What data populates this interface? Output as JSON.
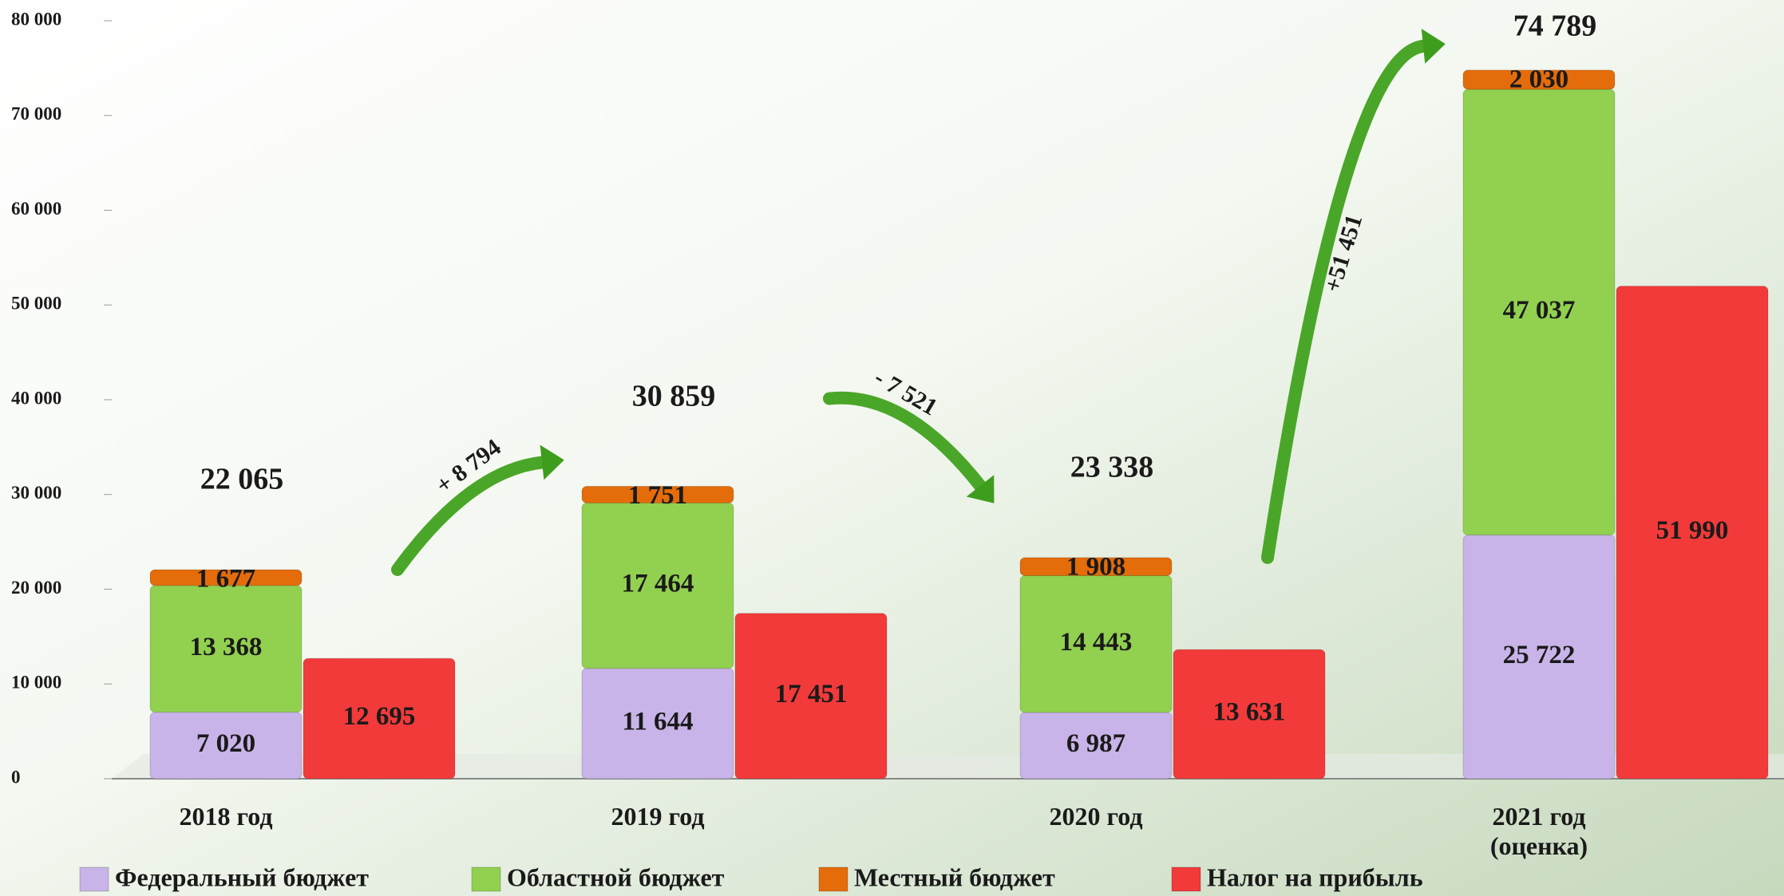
{
  "chart_data": {
    "type": "bar",
    "categories": [
      "2018 год",
      "2019 год",
      "2020 год",
      "2021 год (оценка)"
    ],
    "series": [
      {
        "name": "Федеральный бюджет",
        "color": "#c8b4e8",
        "stacked": true,
        "values": [
          7020,
          11644,
          6987,
          25722
        ],
        "value_labels": [
          "7 020",
          "11 644",
          "6 987",
          "25 722"
        ]
      },
      {
        "name": "Областной бюджет",
        "color": "#92d050",
        "stacked": true,
        "values": [
          13368,
          17464,
          14443,
          47037
        ],
        "value_labels": [
          "13 368",
          "17 464",
          "14 443",
          "47 037"
        ]
      },
      {
        "name": "Местный бюджет",
        "color": "#e46c0a",
        "stacked": true,
        "values": [
          1677,
          1751,
          1908,
          2030
        ],
        "value_labels": [
          "1 677",
          "1 751",
          "1 908",
          "2 030"
        ]
      },
      {
        "name": "Налог на прибыль",
        "color": "#f23a3a",
        "stacked": false,
        "values": [
          12695,
          17451,
          13631,
          51990
        ],
        "value_labels": [
          "12 695",
          "17 451",
          "13 631",
          "51 990"
        ]
      }
    ],
    "totals": [
      22065,
      30859,
      23338,
      74789
    ],
    "total_labels": [
      "22 065",
      "30 859",
      "23 338",
      "74 789"
    ],
    "changes": [
      8794,
      -7521,
      51451
    ],
    "change_labels": [
      "+ 8 794",
      "- 7 521",
      "+51 451"
    ],
    "ylim": [
      0,
      80000
    ],
    "yticks": [
      0,
      {
        "value": 10000,
        "label": "10 000"
      },
      {
        "value": 20000,
        "label": "20 000"
      },
      {
        "value": 30000,
        "label": "30 000"
      },
      {
        "value": 40000,
        "label": "40 000"
      },
      {
        "value": 50000,
        "label": "50 000"
      },
      {
        "value": 60000,
        "label": "60 000"
      },
      {
        "value": 70000,
        "label": "70 000"
      },
      {
        "value": 80000,
        "label": "80 000"
      }
    ],
    "legend": "bottom"
  }
}
